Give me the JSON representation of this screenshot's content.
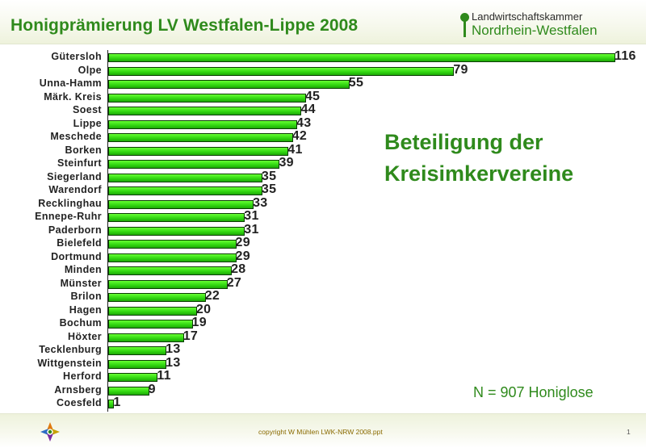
{
  "header": {
    "title": "Honigprämierung LV Westfalen-Lippe 2008",
    "logo_line1": "Landwirtschaftskammer",
    "logo_line2": "Nordrhein-Westfalen"
  },
  "chart_data": {
    "type": "bar",
    "orientation": "horizontal",
    "title": "",
    "categories": [
      "Gütersloh",
      "Olpe",
      "Unna-Hamm",
      "Märk. Kreis",
      "Soest",
      "Lippe",
      "Meschede",
      "Borken",
      "Steinfurt",
      "Siegerland",
      "Warendorf",
      "Recklinghau",
      "Ennepe-Ruhr",
      "Paderborn",
      "Bielefeld",
      "Dortmund",
      "Minden",
      "Münster",
      "Brilon",
      "Hagen",
      "Bochum",
      "Höxter",
      "Tecklenburg",
      "Wittgenstein",
      "Herford",
      "Arnsberg",
      "Coesfeld"
    ],
    "values": [
      116,
      79,
      55,
      45,
      44,
      43,
      42,
      41,
      39,
      35,
      35,
      33,
      31,
      31,
      29,
      29,
      28,
      27,
      22,
      20,
      19,
      17,
      13,
      13,
      11,
      9,
      1
    ],
    "xlim": [
      0,
      116
    ],
    "grid": false,
    "data_labels": true,
    "bar_color": "#33dd11"
  },
  "annotation": {
    "heading_line1": "Beteiligung der",
    "heading_line2": "Kreisimkervereine",
    "n_note": "N = 907 Honiglose"
  },
  "footer": {
    "copyright": "copyright W Mühlen LWK-NRW 2008.ppt",
    "page": "1"
  },
  "colors": {
    "accent": "#2f8a1c",
    "bar": "#33dd11"
  }
}
